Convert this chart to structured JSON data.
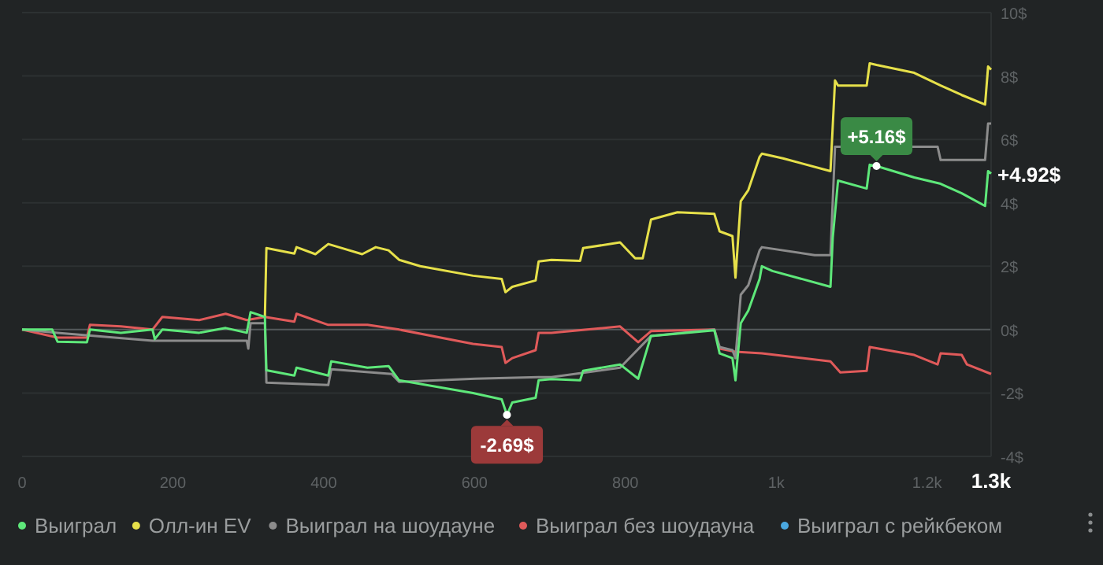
{
  "chart_data": {
    "type": "line",
    "xlim": [
      0,
      1285
    ],
    "xticks": [
      0,
      200,
      400,
      600,
      800,
      {
        "value": 1000,
        "label": "1k"
      },
      {
        "value": 1200,
        "label": "1.2k"
      },
      {
        "value": 1285,
        "label": "1.3k"
      }
    ],
    "ylim": [
      -4,
      10
    ],
    "yticks": [
      {
        "value": -4,
        "label": "-4$"
      },
      {
        "value": -2,
        "label": "-2$"
      },
      {
        "value": 0,
        "label": "0$"
      },
      {
        "value": 2,
        "label": "2$"
      },
      {
        "value": 4,
        "label": "4$"
      },
      {
        "value": 6,
        "label": "6$"
      },
      {
        "value": 8,
        "label": "8$"
      },
      {
        "value": 10,
        "label": "10$"
      }
    ],
    "grid": "y",
    "legend": "bottom",
    "marker": "none",
    "line_style": "solid",
    "annotations": [
      {
        "text": "-2.69$",
        "x": 643,
        "y": -2.69
      },
      {
        "text": "+5.16$",
        "x": 1133,
        "y": 5.16
      },
      {
        "text": "+4.92$",
        "x": 1285,
        "y": 4.92
      }
    ],
    "series": [
      {
        "name": "Выиграл",
        "color": "#5ee87a",
        "x": [
          0,
          40,
          47,
          86,
          90,
          131,
          173,
          176,
          186,
          235,
          270,
          298,
          303,
          322,
          324,
          361,
          364,
          406,
          410,
          458,
          486,
          500,
          598,
          636,
          643,
          650,
          681,
          685,
          702,
          740,
          744,
          793,
          817,
          834,
          918,
          925,
          942,
          946,
          953,
          963,
          978,
          981,
          995,
          1072,
          1075,
          1082,
          1120,
          1124,
          1133,
          1183,
          1218,
          1246,
          1277,
          1281,
          1285
        ],
        "values": [
          0,
          0,
          -0.38,
          -0.4,
          0,
          -0.1,
          0,
          -0.3,
          0,
          -0.1,
          0.05,
          -0.1,
          0.55,
          0.4,
          -1.28,
          -1.45,
          -1.2,
          -1.45,
          -1.0,
          -1.2,
          -1.15,
          -1.6,
          -2.0,
          -2.2,
          -2.69,
          -2.3,
          -2.15,
          -1.6,
          -1.56,
          -1.6,
          -1.3,
          -1.1,
          -1.55,
          -0.2,
          -0.02,
          -0.75,
          -0.9,
          -1.6,
          0.2,
          0.6,
          1.6,
          2.0,
          1.85,
          1.35,
          2.9,
          4.7,
          4.45,
          5.2,
          5.16,
          4.8,
          4.6,
          4.3,
          3.9,
          5.0,
          4.92
        ]
      },
      {
        "name": "Олл-ин EV",
        "color": "#e6e04a",
        "x": [
          322,
          324,
          361,
          364,
          389,
          406,
          420,
          451,
          469,
          486,
          500,
          528,
          598,
          636,
          641,
          650,
          681,
          685,
          702,
          740,
          744,
          793,
          813,
          823,
          834,
          869,
          918,
          925,
          942,
          946,
          953,
          963,
          978,
          981,
          1009,
          1072,
          1078,
          1082,
          1120,
          1124,
          1133,
          1183,
          1218,
          1246,
          1277,
          1281,
          1285
        ],
        "values": [
          0.4,
          2.57,
          2.4,
          2.6,
          2.38,
          2.7,
          2.6,
          2.38,
          2.6,
          2.5,
          2.2,
          2.0,
          1.7,
          1.6,
          1.18,
          1.35,
          1.55,
          2.15,
          2.2,
          2.17,
          2.57,
          2.75,
          2.25,
          2.25,
          3.47,
          3.7,
          3.65,
          3.1,
          2.95,
          1.64,
          4.05,
          4.4,
          5.45,
          5.55,
          5.4,
          5.0,
          7.86,
          7.7,
          7.7,
          8.4,
          8.35,
          8.1,
          7.7,
          7.4,
          7.1,
          8.3,
          8.2
        ]
      },
      {
        "name": "Выиграл на шоудауне",
        "color": "#8c8c8c",
        "x": [
          0,
          47,
          173,
          298,
          300,
          303,
          322,
          324,
          406,
          410,
          490,
          500,
          601,
          685,
          702,
          793,
          834,
          918,
          925,
          942,
          946,
          953,
          963,
          978,
          981,
          1051,
          1072,
          1078,
          1214,
          1218,
          1277,
          1281,
          1285
        ],
        "values": [
          0,
          -0.1,
          -0.35,
          -0.35,
          -0.6,
          0.2,
          0.2,
          -1.67,
          -1.75,
          -1.25,
          -1.4,
          -1.65,
          -1.55,
          -1.5,
          -1.5,
          -1.2,
          -0.2,
          0,
          -0.55,
          -0.65,
          -0.9,
          1.1,
          1.4,
          2.5,
          2.6,
          2.35,
          2.35,
          5.77,
          5.77,
          5.35,
          5.35,
          6.5,
          6.5
        ]
      },
      {
        "name": "Выиграл без шоудауна",
        "color": "#e05a5a",
        "x": [
          0,
          47,
          86,
          90,
          131,
          173,
          186,
          235,
          270,
          298,
          322,
          361,
          364,
          406,
          458,
          500,
          598,
          636,
          641,
          650,
          681,
          685,
          702,
          793,
          817,
          834,
          918,
          925,
          946,
          981,
          1072,
          1085,
          1120,
          1124,
          1183,
          1214,
          1218,
          1246,
          1253,
          1285
        ],
        "values": [
          0,
          -0.25,
          -0.25,
          0.15,
          0.1,
          0,
          0.4,
          0.3,
          0.5,
          0.3,
          0.4,
          0.25,
          0.5,
          0.15,
          0.15,
          0,
          -0.45,
          -0.55,
          -1.05,
          -0.9,
          -0.65,
          -0.1,
          -0.1,
          0.1,
          -0.4,
          -0.05,
          0,
          -0.6,
          -0.7,
          -0.75,
          -1.0,
          -1.35,
          -1.3,
          -0.55,
          -0.8,
          -1.1,
          -0.75,
          -0.8,
          -1.1,
          -1.4
        ]
      },
      {
        "name": "Выиграл с рейкбеком",
        "color": "#4aa8e0"
      }
    ]
  }
}
